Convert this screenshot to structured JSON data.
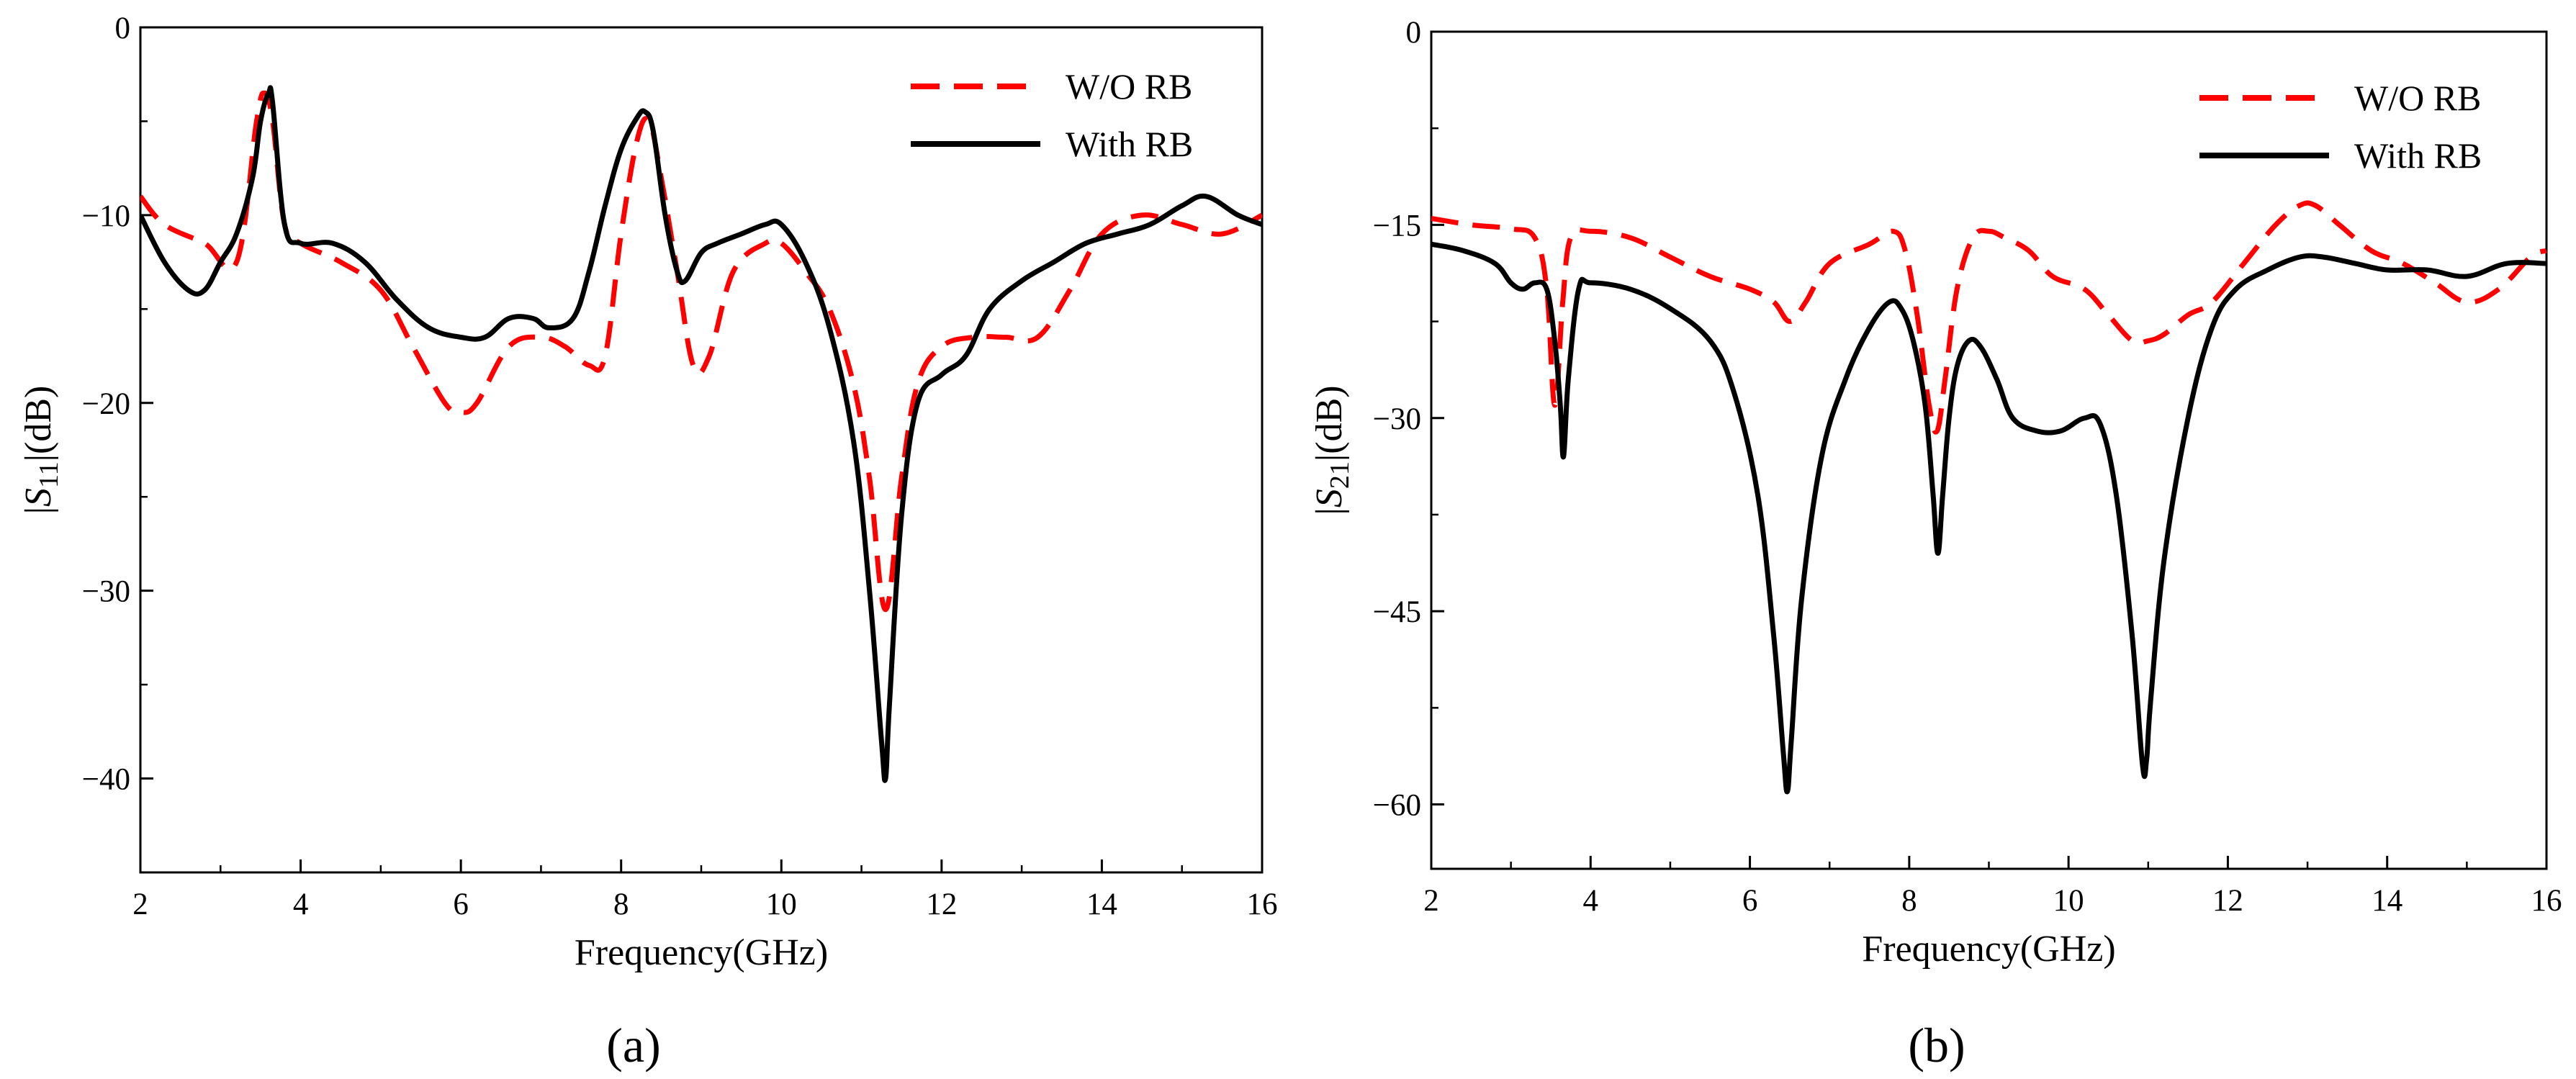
{
  "figure": {
    "panel_a_label": "(a)",
    "panel_b_label": "(b)"
  },
  "colors": {
    "wo_rb": "#ff0000",
    "with_rb": "#000000",
    "axis": "#000000"
  },
  "chart_data": [
    {
      "type": "line",
      "panel": "(a)",
      "title": "",
      "xlabel": "Frequency(GHz)",
      "ylabel_parts": [
        "|",
        "S",
        "11",
        "|(dB)"
      ],
      "xlim": [
        2,
        16
      ],
      "ylim": [
        -45,
        0
      ],
      "xticks": [
        2,
        4,
        6,
        8,
        10,
        12,
        14,
        16
      ],
      "yticks": [
        0,
        -10,
        -20,
        -30,
        -40
      ],
      "ytick_labels": [
        "0",
        "−10",
        "−20",
        "−30",
        "−40"
      ],
      "grid": false,
      "legend_position": "top-right",
      "series": [
        {
          "name": "W/O RB",
          "style": "dashed",
          "color": "#ff0000",
          "x": [
            2.0,
            2.3,
            2.8,
            3.2,
            3.45,
            3.55,
            3.65,
            3.8,
            4.0,
            4.5,
            5.0,
            5.4,
            5.8,
            6.0,
            6.2,
            6.6,
            7.0,
            7.3,
            7.6,
            7.8,
            8.0,
            8.2,
            8.35,
            8.5,
            8.7,
            8.9,
            9.1,
            9.4,
            9.8,
            10.0,
            10.3,
            10.6,
            10.9,
            11.1,
            11.3,
            11.5,
            11.7,
            12.0,
            12.4,
            12.8,
            13.2,
            13.6,
            14.0,
            14.5,
            15.0,
            15.5,
            16.0
          ],
          "y": [
            -9,
            -10.5,
            -11.5,
            -12.5,
            -5,
            -3.5,
            -5,
            -10.5,
            -11.5,
            -12.5,
            -14,
            -17,
            -20,
            -20.5,
            -20,
            -17,
            -16.5,
            -17,
            -18,
            -17.5,
            -11,
            -6,
            -5,
            -8,
            -13,
            -18,
            -17.5,
            -13,
            -11.5,
            -11.5,
            -13,
            -15,
            -19,
            -24,
            -31,
            -24,
            -19,
            -17,
            -16.5,
            -16.5,
            -16.5,
            -14,
            -11,
            -10,
            -10.5,
            -11,
            -10
          ]
        },
        {
          "name": "With RB",
          "style": "solid",
          "color": "#000000",
          "x": [
            2.0,
            2.3,
            2.6,
            2.8,
            3.0,
            3.2,
            3.4,
            3.5,
            3.6,
            3.65,
            3.8,
            4.0,
            4.4,
            4.8,
            5.2,
            5.6,
            6.0,
            6.3,
            6.6,
            6.9,
            7.1,
            7.4,
            7.6,
            7.8,
            8.0,
            8.2,
            8.3,
            8.4,
            8.55,
            8.7,
            8.8,
            9.0,
            9.2,
            9.5,
            9.8,
            10.0,
            10.3,
            10.6,
            10.9,
            11.1,
            11.25,
            11.3,
            11.35,
            11.5,
            11.7,
            12.0,
            12.3,
            12.6,
            13.0,
            13.4,
            13.8,
            14.2,
            14.6,
            15.0,
            15.3,
            15.7,
            16.0
          ],
          "y": [
            -10,
            -12.5,
            -14,
            -14,
            -12.5,
            -11,
            -8,
            -5,
            -3.5,
            -4,
            -10.5,
            -11.5,
            -11.5,
            -12.5,
            -14.5,
            -16,
            -16.5,
            -16.5,
            -15.5,
            -15.5,
            -16,
            -15.5,
            -13,
            -9.5,
            -6.5,
            -4.8,
            -4.5,
            -5.5,
            -10,
            -13,
            -13.5,
            -12,
            -11.5,
            -11,
            -10.5,
            -10.5,
            -12.5,
            -16,
            -22,
            -30,
            -38,
            -40,
            -36,
            -26,
            -20,
            -18.5,
            -17.5,
            -15,
            -13.5,
            -12.5,
            -11.5,
            -11,
            -10.5,
            -9.5,
            -9,
            -10,
            -10.5
          ]
        }
      ]
    },
    {
      "type": "line",
      "panel": "(b)",
      "title": "",
      "xlabel": "Frequency(GHz)",
      "ylabel_parts": [
        "|",
        "S",
        "21",
        "|(dB)"
      ],
      "xlim": [
        2,
        16
      ],
      "ylim": [
        -65,
        0
      ],
      "xticks": [
        2,
        4,
        6,
        8,
        10,
        12,
        14,
        16
      ],
      "yticks": [
        0,
        -15,
        -30,
        -45,
        -60
      ],
      "ytick_labels": [
        "0",
        "−15",
        "−30",
        "−45",
        "−60"
      ],
      "grid": false,
      "legend_position": "top-right",
      "series": [
        {
          "name": "W/O RB",
          "style": "dashed",
          "color": "#ff0000",
          "x": [
            2.0,
            2.5,
            3.0,
            3.3,
            3.45,
            3.55,
            3.65,
            3.75,
            4.0,
            4.5,
            5.0,
            5.5,
            6.0,
            6.3,
            6.5,
            6.7,
            7.0,
            7.5,
            7.8,
            7.95,
            8.1,
            8.25,
            8.35,
            8.45,
            8.6,
            8.8,
            9.0,
            9.2,
            9.5,
            9.8,
            10.2,
            10.5,
            10.8,
            11.0,
            11.2,
            11.5,
            11.8,
            12.2,
            12.6,
            12.9,
            13.1,
            13.4,
            13.8,
            14.2,
            14.6,
            15.0,
            15.4,
            15.8,
            16.0
          ],
          "y": [
            -14.5,
            -15,
            -15.3,
            -16,
            -20,
            -29,
            -21,
            -16,
            -15.5,
            -16,
            -17.5,
            -19,
            -20,
            -21,
            -22.5,
            -21,
            -18,
            -16.5,
            -15.5,
            -17,
            -22,
            -29,
            -31,
            -27,
            -20,
            -16,
            -15.5,
            -16,
            -17,
            -19,
            -20,
            -22,
            -24,
            -24,
            -23.5,
            -22,
            -21,
            -18,
            -15,
            -13.5,
            -13.5,
            -15,
            -17,
            -18,
            -19.5,
            -21,
            -20,
            -17.5,
            -17
          ]
        },
        {
          "name": "With RB",
          "style": "solid",
          "color": "#000000",
          "x": [
            2.0,
            2.4,
            2.8,
            3.0,
            3.15,
            3.3,
            3.45,
            3.55,
            3.62,
            3.66,
            3.72,
            3.85,
            4.0,
            4.5,
            5.0,
            5.5,
            5.8,
            6.1,
            6.3,
            6.42,
            6.47,
            6.52,
            6.65,
            6.9,
            7.2,
            7.5,
            7.75,
            7.9,
            8.05,
            8.2,
            8.3,
            8.36,
            8.42,
            8.5,
            8.6,
            8.75,
            8.9,
            9.1,
            9.3,
            9.6,
            9.9,
            10.2,
            10.4,
            10.6,
            10.8,
            10.93,
            10.98,
            11.03,
            11.2,
            11.5,
            11.8,
            12.1,
            12.5,
            12.9,
            13.2,
            13.6,
            14.0,
            14.5,
            15.0,
            15.5,
            16.0
          ],
          "y": [
            -16.5,
            -17,
            -18,
            -19.5,
            -20,
            -19.5,
            -20,
            -24,
            -29,
            -33,
            -27,
            -20,
            -19.5,
            -20,
            -21.5,
            -24,
            -28,
            -36,
            -47,
            -56,
            -59,
            -55,
            -44,
            -33,
            -27,
            -23,
            -21,
            -21.5,
            -24,
            -29,
            -36,
            -40.5,
            -36,
            -30,
            -26,
            -24,
            -24.5,
            -27,
            -30,
            -31,
            -31,
            -30,
            -30.5,
            -36,
            -47,
            -57,
            -56.5,
            -52,
            -41,
            -30,
            -23,
            -20,
            -18.5,
            -17.5,
            -17.5,
            -18,
            -18.5,
            -18.5,
            -19,
            -18,
            -18
          ]
        }
      ]
    }
  ]
}
